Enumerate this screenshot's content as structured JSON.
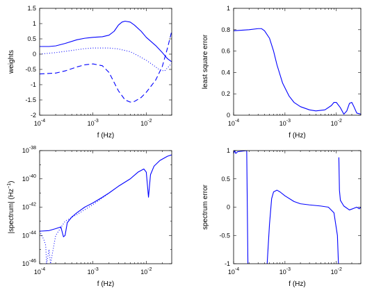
{
  "chart_data": [
    {
      "type": "line",
      "xlabel": "f (Hz)",
      "ylabel": "weights",
      "xscale": "log",
      "xlim": [
        0.0001,
        0.03
      ],
      "ylim": [
        -2,
        1.5
      ],
      "grid": false,
      "xticks": [
        {
          "value": 0.0001,
          "base": "10",
          "exp": "-4"
        },
        {
          "value": 0.001,
          "base": "10",
          "exp": "-3"
        },
        {
          "value": 0.01,
          "base": "10",
          "exp": "-2"
        }
      ],
      "yticks": [
        {
          "value": 1.5,
          "label": "1.5"
        },
        {
          "value": 1,
          "label": "1"
        },
        {
          "value": 0.5,
          "label": "0.5"
        },
        {
          "value": 0,
          "label": "0"
        },
        {
          "value": -0.5,
          "label": "-0.5"
        },
        {
          "value": -1,
          "label": "-1"
        },
        {
          "value": -1.5,
          "label": "-1.5"
        },
        {
          "value": -2,
          "label": "-2"
        }
      ],
      "series": [
        {
          "style": "solid",
          "color": "#0000ff",
          "points": [
            [
              0.0001,
              0.25
            ],
            [
              0.00015,
              0.25
            ],
            [
              0.0002,
              0.27
            ],
            [
              0.0003,
              0.35
            ],
            [
              0.0005,
              0.47
            ],
            [
              0.0007,
              0.52
            ],
            [
              0.001,
              0.55
            ],
            [
              0.0015,
              0.57
            ],
            [
              0.002,
              0.62
            ],
            [
              0.0025,
              0.75
            ],
            [
              0.003,
              0.95
            ],
            [
              0.0035,
              1.05
            ],
            [
              0.004,
              1.08
            ],
            [
              0.005,
              1.05
            ],
            [
              0.006,
              0.95
            ],
            [
              0.008,
              0.75
            ],
            [
              0.01,
              0.55
            ],
            [
              0.015,
              0.28
            ],
            [
              0.02,
              0.05
            ],
            [
              0.025,
              -0.15
            ],
            [
              0.03,
              -0.25
            ]
          ]
        },
        {
          "style": "dotted",
          "color": "#0000ff",
          "points": [
            [
              0.0001,
              0.0
            ],
            [
              0.0002,
              0.05
            ],
            [
              0.0004,
              0.12
            ],
            [
              0.0007,
              0.18
            ],
            [
              0.001,
              0.2
            ],
            [
              0.002,
              0.2
            ],
            [
              0.003,
              0.17
            ],
            [
              0.005,
              0.08
            ],
            [
              0.007,
              -0.05
            ],
            [
              0.01,
              -0.2
            ],
            [
              0.014,
              -0.38
            ],
            [
              0.018,
              -0.52
            ],
            [
              0.022,
              -0.55
            ],
            [
              0.025,
              -0.45
            ],
            [
              0.03,
              -0.3
            ]
          ]
        },
        {
          "style": "dashed",
          "color": "#0000ff",
          "points": [
            [
              0.0001,
              -0.65
            ],
            [
              0.0002,
              -0.62
            ],
            [
              0.0003,
              -0.55
            ],
            [
              0.0005,
              -0.42
            ],
            [
              0.0007,
              -0.35
            ],
            [
              0.001,
              -0.32
            ],
            [
              0.0015,
              -0.38
            ],
            [
              0.002,
              -0.6
            ],
            [
              0.003,
              -1.2
            ],
            [
              0.004,
              -1.5
            ],
            [
              0.005,
              -1.57
            ],
            [
              0.006,
              -1.55
            ],
            [
              0.008,
              -1.42
            ],
            [
              0.01,
              -1.25
            ],
            [
              0.015,
              -0.85
            ],
            [
              0.02,
              -0.4
            ],
            [
              0.025,
              0.2
            ],
            [
              0.03,
              0.75
            ]
          ]
        }
      ]
    },
    {
      "type": "line",
      "xlabel": "f (Hz)",
      "ylabel": "least square error",
      "xscale": "log",
      "xlim": [
        0.0001,
        0.03
      ],
      "ylim": [
        0,
        1
      ],
      "grid": false,
      "xticks": [
        {
          "value": 0.0001,
          "base": "10",
          "exp": "-4"
        },
        {
          "value": 0.001,
          "base": "10",
          "exp": "-3"
        },
        {
          "value": 0.01,
          "base": "10",
          "exp": "-2"
        }
      ],
      "yticks": [
        {
          "value": 0,
          "label": "0"
        },
        {
          "value": 0.2,
          "label": "0.2"
        },
        {
          "value": 0.4,
          "label": "0.4"
        },
        {
          "value": 0.6,
          "label": "0.6"
        },
        {
          "value": 0.8,
          "label": "0.8"
        },
        {
          "value": 1,
          "label": "1"
        }
      ],
      "series": [
        {
          "style": "solid",
          "color": "#0000ff",
          "points": [
            [
              0.0001,
              0.79
            ],
            [
              0.0002,
              0.8
            ],
            [
              0.0003,
              0.81
            ],
            [
              0.00035,
              0.81
            ],
            [
              0.0004,
              0.79
            ],
            [
              0.0005,
              0.72
            ],
            [
              0.0006,
              0.6
            ],
            [
              0.0007,
              0.47
            ],
            [
              0.0009,
              0.3
            ],
            [
              0.0012,
              0.18
            ],
            [
              0.0015,
              0.12
            ],
            [
              0.002,
              0.08
            ],
            [
              0.003,
              0.05
            ],
            [
              0.004,
              0.04
            ],
            [
              0.006,
              0.05
            ],
            [
              0.008,
              0.09
            ],
            [
              0.009,
              0.12
            ],
            [
              0.01,
              0.12
            ],
            [
              0.012,
              0.07
            ],
            [
              0.014,
              0.01
            ],
            [
              0.016,
              0.04
            ],
            [
              0.018,
              0.11
            ],
            [
              0.02,
              0.12
            ],
            [
              0.022,
              0.08
            ],
            [
              0.025,
              0.02
            ],
            [
              0.03,
              0.01
            ]
          ]
        }
      ]
    },
    {
      "type": "line",
      "xlabel": "f (Hz)",
      "ylabel_parts": {
        "pre": "|spectrum| (Hz",
        "sup": "−1",
        "post": ")"
      },
      "xscale": "log",
      "yscale": "log",
      "xlim": [
        0.0001,
        0.03
      ],
      "ylim": [
        1e-46,
        1e-38
      ],
      "grid": false,
      "xticks": [
        {
          "value": 0.0001,
          "base": "10",
          "exp": "-4"
        },
        {
          "value": 0.001,
          "base": "10",
          "exp": "-3"
        },
        {
          "value": 0.01,
          "base": "10",
          "exp": "-2"
        }
      ],
      "yticks": [
        {
          "value": 1e-38,
          "base": "10",
          "exp": "-38"
        },
        {
          "value": 1e-40,
          "base": "10",
          "exp": "-40"
        },
        {
          "value": 1e-42,
          "base": "10",
          "exp": "-42"
        },
        {
          "value": 1e-44,
          "base": "10",
          "exp": "-44"
        },
        {
          "value": 1e-46,
          "base": "10",
          "exp": "-46"
        }
      ],
      "series": [
        {
          "style": "solid",
          "color": "#0000ff",
          "points": [
            [
              0.0001,
              2e-44
            ],
            [
              0.00015,
              2.2e-44
            ],
            [
              0.0002,
              3e-44
            ],
            [
              0.00025,
              4e-44
            ],
            [
              0.00028,
              8e-45
            ],
            [
              0.0003,
              1e-44
            ],
            [
              0.00033,
              8e-44
            ],
            [
              0.0004,
              2e-43
            ],
            [
              0.0005,
              4e-43
            ],
            [
              0.0007,
              1e-42
            ],
            [
              0.001,
              2e-42
            ],
            [
              0.0015,
              5e-42
            ],
            [
              0.002,
              1e-41
            ],
            [
              0.003,
              3e-41
            ],
            [
              0.005,
              1e-40
            ],
            [
              0.007,
              3e-40
            ],
            [
              0.009,
              5e-40
            ],
            [
              0.01,
              3e-40
            ],
            [
              0.011,
              5e-42
            ],
            [
              0.012,
              2e-40
            ],
            [
              0.014,
              8e-40
            ],
            [
              0.018,
              2e-39
            ],
            [
              0.025,
              4e-39
            ],
            [
              0.03,
              5e-39
            ]
          ]
        },
        {
          "style": "dotted",
          "color": "#0000ff",
          "points": [
            [
              0.0001,
              2e-44
            ],
            [
              0.00012,
              5e-45
            ],
            [
              0.00013,
              2e-45
            ],
            [
              0.000135,
              1e-46
            ],
            [
              0.00015,
              1e-45
            ],
            [
              0.00016,
              1e-46
            ],
            [
              0.0002,
              1e-44
            ],
            [
              0.0003,
              1e-43
            ],
            [
              0.0005,
              3e-43
            ],
            [
              0.001,
              1.5e-42
            ],
            [
              0.002,
              1e-41
            ]
          ]
        }
      ]
    },
    {
      "type": "line",
      "xlabel": "f (Hz)",
      "ylabel": "spectrum error",
      "xscale": "log",
      "xlim": [
        0.0001,
        0.03
      ],
      "ylim": [
        -1,
        1
      ],
      "grid": false,
      "xticks": [
        {
          "value": 0.0001,
          "base": "10",
          "exp": "-4"
        },
        {
          "value": 0.001,
          "base": "10",
          "exp": "-3"
        },
        {
          "value": 0.01,
          "base": "10",
          "exp": "-2"
        }
      ],
      "yticks": [
        {
          "value": 1,
          "label": "1"
        },
        {
          "value": 0.5,
          "label": "0.5"
        },
        {
          "value": 0,
          "label": "0"
        },
        {
          "value": -0.5,
          "label": "-0.5"
        },
        {
          "value": -1,
          "label": "-1"
        }
      ],
      "series": [
        {
          "style": "solid",
          "color": "#0000ff",
          "points": [
            [
              0.0001,
              0.95
            ],
            [
              0.000105,
              1.0
            ],
            [
              0.00011,
              0.95
            ],
            [
              0.00012,
              0.98
            ],
            [
              0.00018,
              1.0
            ],
            [
              0.00019,
              -1.0
            ]
          ]
        },
        {
          "style": "solid",
          "color": "#0000ff",
          "points": [
            [
              0.00045,
              -1.0
            ],
            [
              0.0005,
              -0.3
            ],
            [
              0.00055,
              0.15
            ],
            [
              0.0006,
              0.27
            ],
            [
              0.0007,
              0.3
            ],
            [
              0.0008,
              0.27
            ],
            [
              0.001,
              0.2
            ],
            [
              0.0015,
              0.1
            ],
            [
              0.002,
              0.06
            ],
            [
              0.003,
              0.04
            ],
            [
              0.005,
              0.02
            ],
            [
              0.007,
              0.0
            ],
            [
              0.009,
              -0.1
            ],
            [
              0.0105,
              -0.5
            ],
            [
              0.011,
              -1.0
            ]
          ]
        },
        {
          "style": "solid",
          "color": "#0000ff",
          "points": [
            [
              0.0112,
              0.88
            ],
            [
              0.0115,
              0.3
            ],
            [
              0.012,
              0.12
            ],
            [
              0.014,
              0.02
            ],
            [
              0.018,
              -0.05
            ],
            [
              0.022,
              -0.02
            ],
            [
              0.025,
              0.0
            ],
            [
              0.028,
              -0.03
            ],
            [
              0.03,
              0.0
            ]
          ]
        }
      ]
    }
  ]
}
